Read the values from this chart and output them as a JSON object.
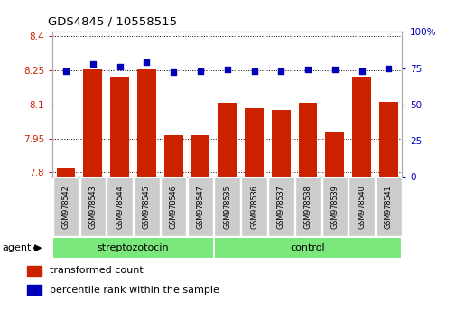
{
  "title": "GDS4845 / 10558515",
  "samples": [
    "GSM978542",
    "GSM978543",
    "GSM978544",
    "GSM978545",
    "GSM978546",
    "GSM978547",
    "GSM978535",
    "GSM978536",
    "GSM978537",
    "GSM978538",
    "GSM978539",
    "GSM978540",
    "GSM978541"
  ],
  "bar_values": [
    7.82,
    8.255,
    8.22,
    8.255,
    7.965,
    7.963,
    8.107,
    8.082,
    8.076,
    8.107,
    7.975,
    8.22,
    8.11
  ],
  "percentile_values": [
    73,
    78,
    76,
    79,
    72,
    73,
    74,
    73,
    73,
    74,
    74,
    73,
    75
  ],
  "bar_color": "#cc2200",
  "percentile_color": "#0000bb",
  "ylim_left": [
    7.78,
    8.42
  ],
  "ylim_right": [
    0,
    100
  ],
  "yticks_left": [
    7.8,
    7.95,
    8.1,
    8.25,
    8.4
  ],
  "yticks_right": [
    0,
    25,
    50,
    75,
    100
  ],
  "ytick_labels_left": [
    "7.8",
    "7.95",
    "8.1",
    "8.25",
    "8.4"
  ],
  "ytick_labels_right": [
    "0",
    "25",
    "50",
    "75",
    "100%"
  ],
  "groups": [
    {
      "label": "streptozotocin",
      "start": 0,
      "end": 6,
      "color": "#7be87b"
    },
    {
      "label": "control",
      "start": 6,
      "end": 13,
      "color": "#7be87b"
    }
  ],
  "group_label_prefix": "agent",
  "legend_bar_label": "transformed count",
  "legend_percentile_label": "percentile rank within the sample",
  "bar_width": 0.7,
  "background_color": "#ffffff",
  "plot_bg_color": "#ffffff",
  "grid_color": "#000000",
  "tick_label_bg": "#cccccc"
}
